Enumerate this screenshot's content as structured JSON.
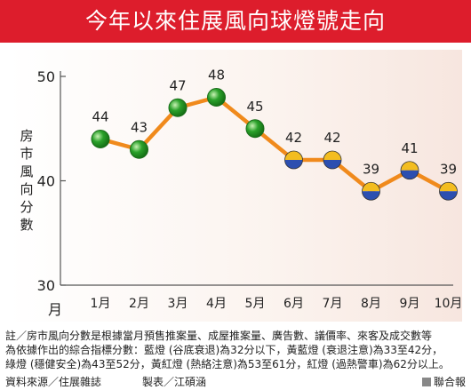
{
  "title": "今年以來住展風向球燈號走向",
  "chart_data": {
    "type": "line",
    "categories": [
      "1月",
      "2月",
      "3月",
      "4月",
      "5月",
      "6月",
      "7月",
      "8月",
      "9月",
      "10月"
    ],
    "series": [
      {
        "values": [
          44,
          43,
          47,
          48,
          45,
          42,
          42,
          39,
          41,
          39
        ]
      }
    ],
    "ylabel": "房市風向分數",
    "xlabel": "月",
    "ylim": [
      30,
      50
    ],
    "yticks": [
      30,
      40,
      50
    ],
    "grid": false,
    "point_colors": {
      "green_light": "#2aa12a",
      "yellow_blue_light_top": "#f3bd20",
      "yellow_blue_light_bottom": "#2c4fb0"
    },
    "line_color": "#f08a1c"
  },
  "notes": [
    "註／房市風向分數是根據當月預售推案量、成屋推案量、廣告數、議價率、來客及成交數等",
    "為依據作出的綜合指標分數：藍燈 (谷底衰退)為32分以下，黃藍燈 (衰退注意)為33至42分，",
    "綠燈 (穩健安全)為43至52分，黃紅燈 (熱絡注意)為53至61分，紅燈 (過熱警車)為62分以上。"
  ],
  "source": "資料來源／住展雜誌",
  "credit": "製表／江碩涵",
  "brand": "聯合報"
}
